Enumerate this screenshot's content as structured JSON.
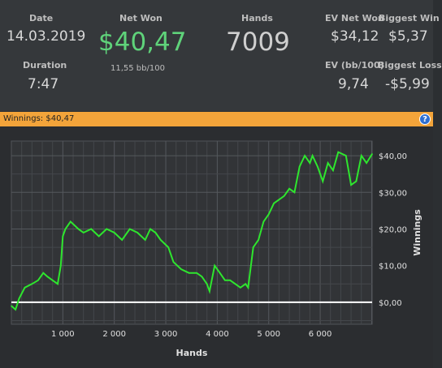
{
  "stats": {
    "date_label": "Date",
    "date_value": "14.03.2019",
    "duration_label": "Duration",
    "duration_value": "7:47",
    "net_won_label": "Net Won",
    "net_won_value": "$40,47",
    "net_won_sub": "11,55 bb/100",
    "hands_label": "Hands",
    "hands_value": "7009",
    "ev_net_label": "EV Net Won",
    "ev_net_value": "$34,12",
    "biggest_win_label": "Biggest Win",
    "biggest_win_value": "$5,37",
    "ev_bb_label": "EV (bb/100)",
    "ev_bb_value": "9,74",
    "biggest_loss_label": "Biggest Loss",
    "biggest_loss_value": "-$5,99"
  },
  "header_bar": {
    "text": "Winnings: $40,47",
    "help_icon": "help-icon",
    "color": "#f3a43a"
  },
  "chart_data": {
    "type": "line",
    "title": "",
    "xlabel": "Hands",
    "ylabel": "Winnings",
    "xlim": [
      0,
      7009
    ],
    "ylim": [
      -6,
      44
    ],
    "x_ticks": [
      1000,
      2000,
      3000,
      4000,
      5000,
      6000
    ],
    "x_tick_labels": [
      "1 000",
      "2 000",
      "3 000",
      "4 000",
      "5 000",
      "6 000"
    ],
    "y_ticks": [
      0,
      10,
      20,
      30,
      40
    ],
    "y_tick_labels": [
      "$0,00",
      "$10,00",
      "$20,00",
      "$30,00",
      "$40,00"
    ],
    "grid": true,
    "line_color": "#2ee62e",
    "zero_line_color": "#ffffff",
    "series": [
      {
        "x": [
          0,
          80,
          150,
          260,
          400,
          520,
          620,
          700,
          800,
          900,
          960,
          1000,
          1050,
          1150,
          1300,
          1400,
          1550,
          1700,
          1850,
          2000,
          2150,
          2300,
          2450,
          2600,
          2700,
          2800,
          2900,
          3050,
          3150,
          3300,
          3450,
          3600,
          3700,
          3800,
          3850,
          3950,
          4050,
          4150,
          4250,
          4350,
          4450,
          4550,
          4600,
          4700,
          4800,
          4900,
          5000,
          5100,
          5200,
          5300,
          5400,
          5500,
          5600,
          5700,
          5800,
          5850,
          5950,
          6050,
          6150,
          6250,
          6350,
          6500,
          6600,
          6700,
          6800,
          6900,
          7009
        ],
        "y": [
          -1,
          -2,
          1,
          4,
          5,
          6,
          8,
          7,
          6,
          5,
          10,
          18,
          20,
          22,
          20,
          19,
          20,
          18,
          20,
          19,
          17,
          20,
          19,
          17,
          20,
          19,
          17,
          15,
          11,
          9,
          8,
          8,
          7,
          5,
          3,
          10,
          8,
          6,
          6,
          5,
          4,
          5,
          4,
          15,
          17,
          22,
          24,
          27,
          28,
          29,
          31,
          30,
          37,
          40,
          38,
          40,
          37,
          33,
          38,
          36,
          41,
          40,
          32,
          33,
          40,
          38,
          40.47
        ]
      }
    ]
  }
}
